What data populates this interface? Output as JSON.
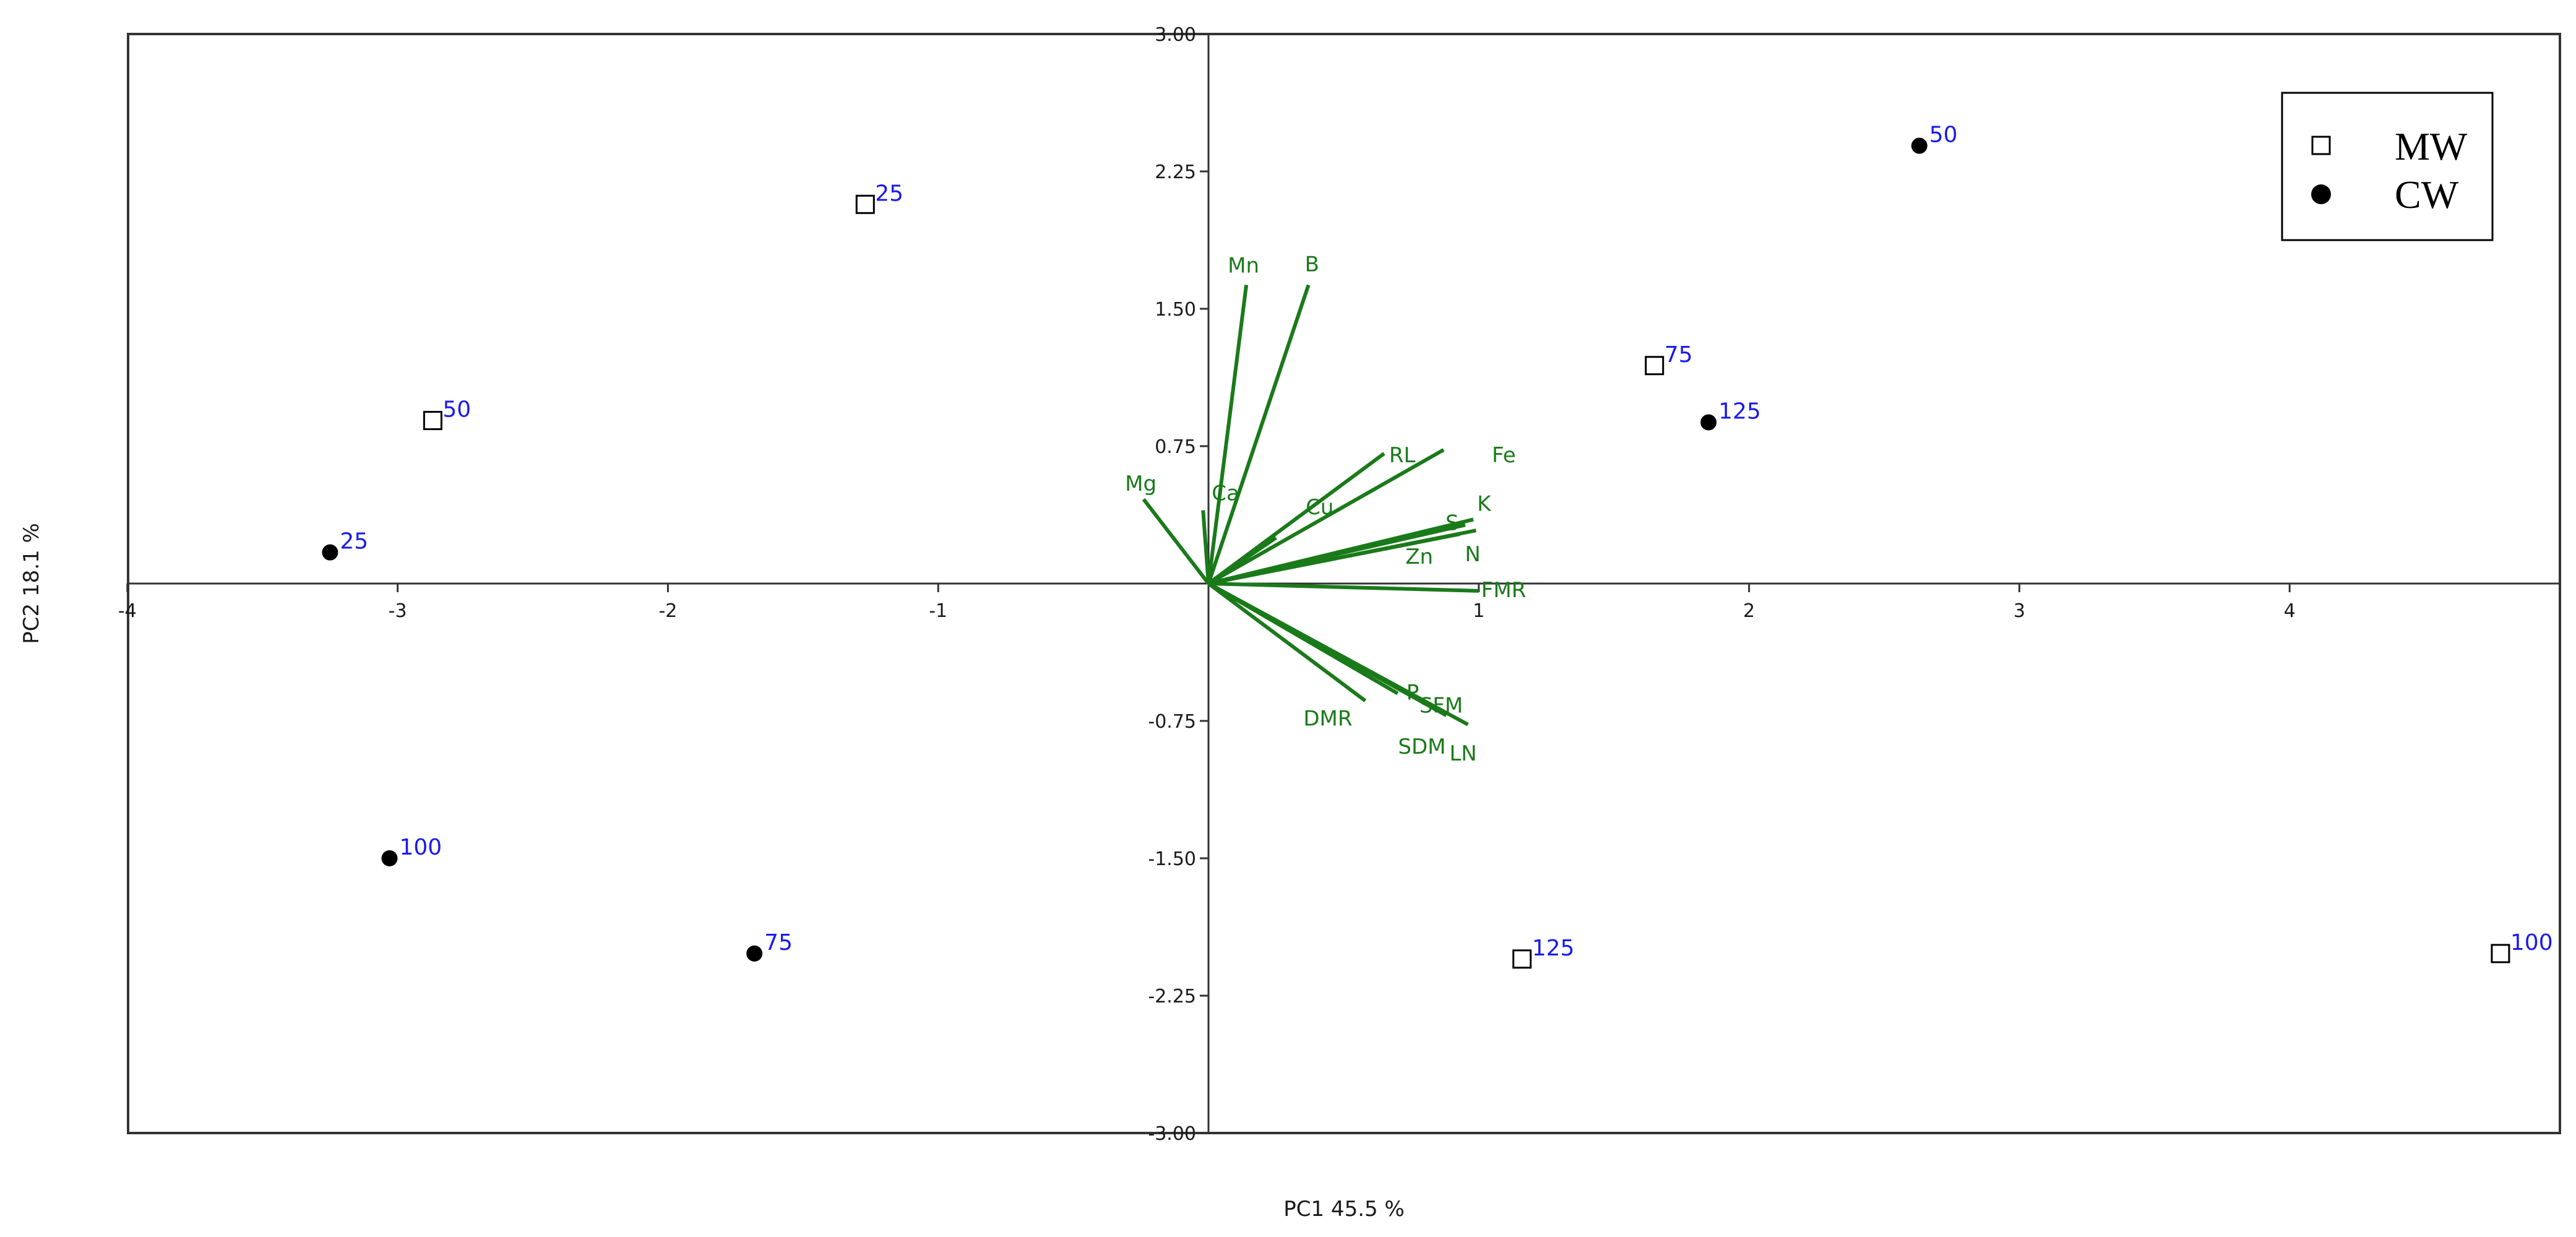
{
  "chart_data": {
    "type": "scatter",
    "subtype": "pca-biplot",
    "title": "",
    "xlabel": "PC1 45.5 %",
    "ylabel": "PC2 18.1 %",
    "xlim": [
      -4,
      5
    ],
    "ylim": [
      -3,
      3
    ],
    "x_ticks": [
      "-4",
      "-3",
      "-2",
      "-1",
      "1",
      "2",
      "3",
      "4"
    ],
    "x_tick_values": [
      -4,
      -3,
      -2,
      -1,
      1,
      2,
      3,
      4
    ],
    "y_ticks": [
      "3.00",
      "2.25",
      "1.50",
      "0.75",
      "-0.75",
      "-1.50",
      "-2.25",
      "-3.00"
    ],
    "y_tick_values": [
      3.0,
      2.25,
      1.5,
      0.75,
      -0.75,
      -1.5,
      -2.25,
      -3.0
    ],
    "grid": false,
    "legend_position": "top-right",
    "colors": {
      "vector": "#1a7a1a",
      "point_label": "#1a1aee",
      "axis": "#333333"
    },
    "series": [
      {
        "name": "MW",
        "marker": "open-square",
        "points": [
          {
            "label": "25",
            "x": -1.27,
            "y": 2.07
          },
          {
            "label": "50",
            "x": -2.87,
            "y": 0.89
          },
          {
            "label": "75",
            "x": 1.65,
            "y": 1.19
          },
          {
            "label": "125",
            "x": 1.16,
            "y": -2.05
          },
          {
            "label": "100",
            "x": 4.78,
            "y": -2.02
          }
        ]
      },
      {
        "name": "CW",
        "marker": "filled-circle",
        "points": [
          {
            "label": "50",
            "x": 2.63,
            "y": 2.39
          },
          {
            "label": "125",
            "x": 1.85,
            "y": 0.88
          },
          {
            "label": "25",
            "x": -3.25,
            "y": 0.17
          },
          {
            "label": "100",
            "x": -3.03,
            "y": -1.5
          },
          {
            "label": "75",
            "x": -1.68,
            "y": -2.02
          }
        ]
      }
    ],
    "vectors": [
      {
        "name": "Mn",
        "x": 0.14,
        "y": 1.63
      },
      {
        "name": "B",
        "x": 0.37,
        "y": 1.63
      },
      {
        "name": "Mg",
        "x": -0.24,
        "y": 0.46
      },
      {
        "name": "Ca",
        "x": -0.02,
        "y": 0.4
      },
      {
        "name": "Cu",
        "x": 0.25,
        "y": 0.25
      },
      {
        "name": "RL",
        "x": 0.65,
        "y": 0.71
      },
      {
        "name": "Fe",
        "x": 0.87,
        "y": 0.73
      },
      {
        "name": "K",
        "x": 0.98,
        "y": 0.35
      },
      {
        "name": "S",
        "x": 0.95,
        "y": 0.32
      },
      {
        "name": "Zn",
        "x": 0.93,
        "y": 0.27
      },
      {
        "name": "N",
        "x": 0.99,
        "y": 0.29
      },
      {
        "name": "FMR",
        "x": 1.0,
        "y": -0.04
      },
      {
        "name": "DMR",
        "x": 0.58,
        "y": -0.64
      },
      {
        "name": "P",
        "x": 0.7,
        "y": -0.6
      },
      {
        "name": "SFM",
        "x": 0.78,
        "y": -0.63
      },
      {
        "name": "SDM",
        "x": 0.88,
        "y": -0.72
      },
      {
        "name": "LN",
        "x": 0.96,
        "y": -0.77
      }
    ]
  }
}
